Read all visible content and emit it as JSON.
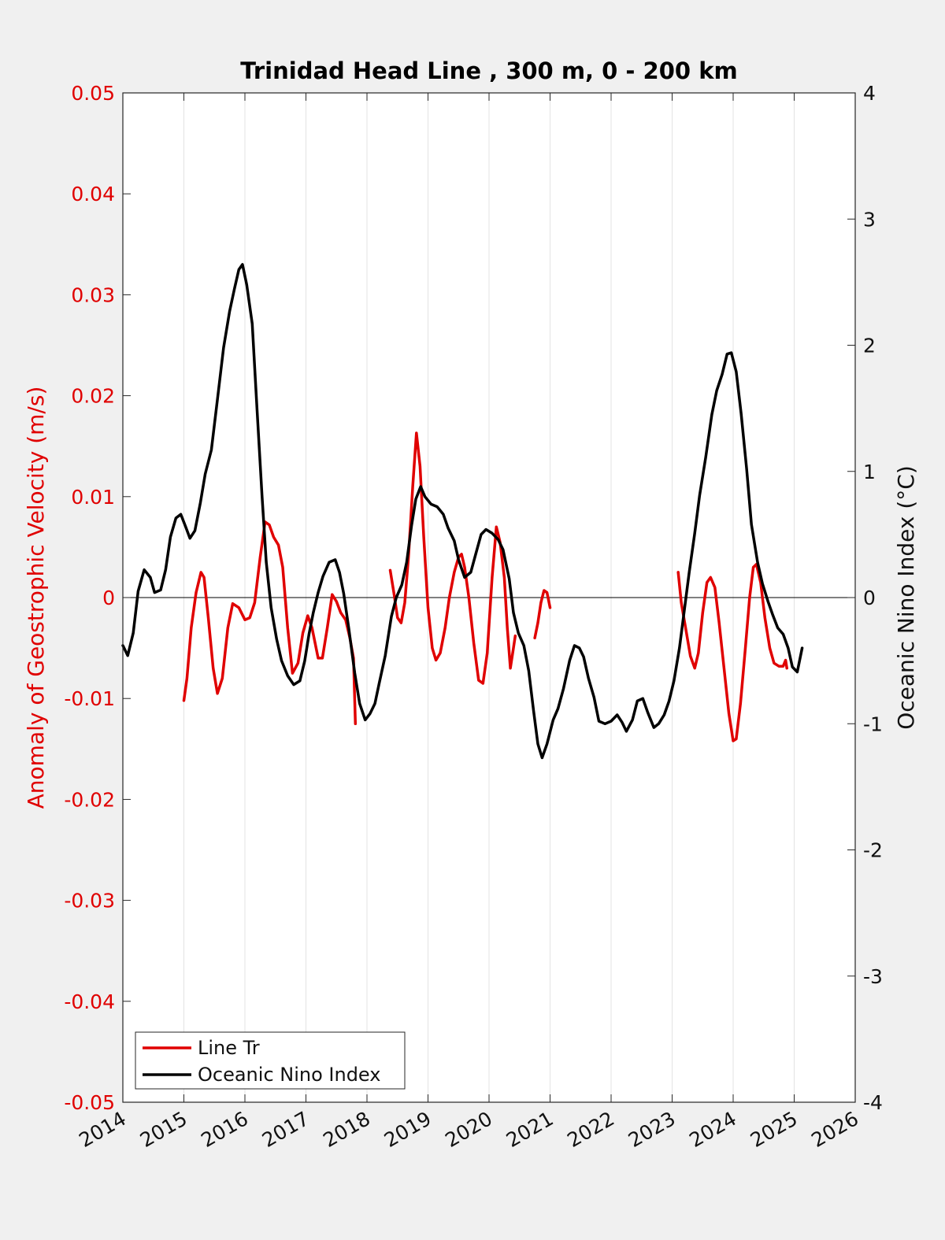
{
  "chart_data": {
    "type": "line",
    "title": "Trinidad Head Line , 300 m, 0 - 200 km",
    "ylabel_left": "Anomaly of Geostrophic Velocity (m/s)",
    "ylabel_right": "Oceanic Nino Index (°C)",
    "xlim": [
      2014,
      2026
    ],
    "ylim_left": [
      -0.05,
      0.05
    ],
    "ylim_right": [
      -4,
      4
    ],
    "x_ticks": [
      "2014",
      "2015",
      "2016",
      "2017",
      "2018",
      "2019",
      "2020",
      "2021",
      "2022",
      "2023",
      "2024",
      "2025",
      "2026"
    ],
    "y_left_ticks": [
      "0.05",
      "0.04",
      "0.03",
      "0.02",
      "0.01",
      "0",
      "-0.01",
      "-0.02",
      "-0.03",
      "-0.04",
      "-0.05"
    ],
    "y_right_ticks": [
      "4",
      "3",
      "2",
      "1",
      "0",
      "-1",
      "-2",
      "-3",
      "-4"
    ],
    "grid": "vertical",
    "zero_line": true,
    "legend_position": "bottom-left",
    "colors": {
      "line_tr": "#e00000",
      "oni": "#000000",
      "left_axis": "#e00000"
    },
    "series": [
      {
        "name": "Line Tr",
        "axis": "left",
        "segments": [
          [
            [
              2015.0,
              -0.0102
            ],
            [
              2015.05,
              -0.008
            ],
            [
              2015.12,
              -0.003
            ],
            [
              2015.2,
              0.0005
            ],
            [
              2015.28,
              0.0025
            ],
            [
              2015.33,
              0.002
            ],
            [
              2015.4,
              -0.002
            ],
            [
              2015.48,
              -0.007
            ],
            [
              2015.55,
              -0.0095
            ],
            [
              2015.63,
              -0.008
            ],
            [
              2015.72,
              -0.003
            ],
            [
              2015.8,
              -0.0006
            ],
            [
              2015.9,
              -0.001
            ],
            [
              2016.0,
              -0.0022
            ],
            [
              2016.08,
              -0.002
            ],
            [
              2016.16,
              -0.0005
            ],
            [
              2016.25,
              0.004
            ],
            [
              2016.33,
              0.0075
            ],
            [
              2016.4,
              0.0072
            ],
            [
              2016.47,
              0.006
            ],
            [
              2016.55,
              0.0052
            ],
            [
              2016.62,
              0.003
            ],
            [
              2016.7,
              -0.003
            ],
            [
              2016.78,
              -0.0075
            ],
            [
              2016.87,
              -0.0065
            ],
            [
              2016.95,
              -0.0035
            ],
            [
              2017.03,
              -0.0018
            ],
            [
              2017.1,
              -0.003
            ],
            [
              2017.2,
              -0.006
            ],
            [
              2017.27,
              -0.006
            ],
            [
              2017.35,
              -0.003
            ],
            [
              2017.43,
              0.0003
            ],
            [
              2017.5,
              -0.0004
            ],
            [
              2017.57,
              -0.0015
            ],
            [
              2017.65,
              -0.0022
            ],
            [
              2017.72,
              -0.004
            ],
            [
              2017.78,
              -0.006
            ],
            [
              2017.81,
              -0.0125
            ]
          ],
          [
            [
              2018.38,
              0.0027
            ],
            [
              2018.44,
              0.0005
            ],
            [
              2018.5,
              -0.002
            ],
            [
              2018.56,
              -0.0025
            ],
            [
              2018.62,
              -0.0005
            ],
            [
              2018.68,
              0.004
            ],
            [
              2018.75,
              0.011
            ],
            [
              2018.81,
              0.0163
            ],
            [
              2018.87,
              0.013
            ],
            [
              2018.93,
              0.006
            ],
            [
              2019.0,
              -0.001
            ],
            [
              2019.07,
              -0.005
            ],
            [
              2019.13,
              -0.0062
            ],
            [
              2019.2,
              -0.0055
            ],
            [
              2019.28,
              -0.003
            ],
            [
              2019.35,
              0.0
            ],
            [
              2019.43,
              0.0025
            ],
            [
              2019.5,
              0.004
            ],
            [
              2019.55,
              0.0043
            ],
            [
              2019.6,
              0.003
            ],
            [
              2019.67,
              0.0
            ],
            [
              2019.75,
              -0.0045
            ],
            [
              2019.83,
              -0.0082
            ],
            [
              2019.9,
              -0.0085
            ],
            [
              2019.97,
              -0.0055
            ],
            [
              2020.05,
              0.002
            ],
            [
              2020.12,
              0.007
            ],
            [
              2020.18,
              0.0055
            ],
            [
              2020.25,
              0.002
            ],
            [
              2020.3,
              -0.003
            ],
            [
              2020.35,
              -0.007
            ],
            [
              2020.4,
              -0.005
            ],
            [
              2020.43,
              -0.0038
            ]
          ],
          [
            [
              2020.75,
              -0.004
            ],
            [
              2020.8,
              -0.0025
            ],
            [
              2020.85,
              -0.0005
            ],
            [
              2020.9,
              0.0007
            ],
            [
              2020.95,
              0.0005
            ],
            [
              2021.0,
              -0.001
            ]
          ],
          [
            [
              2023.1,
              0.0025
            ],
            [
              2023.15,
              -0.0005
            ],
            [
              2023.22,
              -0.003
            ],
            [
              2023.3,
              -0.0058
            ],
            [
              2023.37,
              -0.007
            ],
            [
              2023.43,
              -0.0055
            ],
            [
              2023.5,
              -0.0015
            ],
            [
              2023.57,
              0.0015
            ],
            [
              2023.63,
              0.002
            ],
            [
              2023.7,
              0.001
            ],
            [
              2023.77,
              -0.0025
            ],
            [
              2023.85,
              -0.007
            ],
            [
              2023.93,
              -0.0115
            ],
            [
              2024.0,
              -0.0142
            ],
            [
              2024.05,
              -0.014
            ],
            [
              2024.12,
              -0.0105
            ],
            [
              2024.2,
              -0.005
            ],
            [
              2024.27,
              0.0
            ],
            [
              2024.33,
              0.003
            ],
            [
              2024.38,
              0.0033
            ],
            [
              2024.45,
              0.0015
            ],
            [
              2024.52,
              -0.002
            ],
            [
              2024.6,
              -0.005
            ],
            [
              2024.67,
              -0.0065
            ],
            [
              2024.75,
              -0.0068
            ],
            [
              2024.82,
              -0.0068
            ],
            [
              2024.86,
              -0.0062
            ],
            [
              2024.88,
              -0.007
            ]
          ]
        ]
      },
      {
        "name": "Oceanic Nino Index",
        "axis": "right",
        "points": [
          [
            2014.0,
            -0.38
          ],
          [
            2014.08,
            -0.46
          ],
          [
            2014.17,
            -0.28
          ],
          [
            2014.25,
            0.05
          ],
          [
            2014.35,
            0.22
          ],
          [
            2014.45,
            0.16
          ],
          [
            2014.52,
            0.04
          ],
          [
            2014.62,
            0.06
          ],
          [
            2014.7,
            0.22
          ],
          [
            2014.78,
            0.48
          ],
          [
            2014.87,
            0.63
          ],
          [
            2014.95,
            0.66
          ],
          [
            2015.03,
            0.56
          ],
          [
            2015.1,
            0.47
          ],
          [
            2015.18,
            0.53
          ],
          [
            2015.27,
            0.75
          ],
          [
            2015.35,
            0.98
          ],
          [
            2015.45,
            1.17
          ],
          [
            2015.55,
            1.57
          ],
          [
            2015.65,
            1.98
          ],
          [
            2015.75,
            2.27
          ],
          [
            2015.83,
            2.45
          ],
          [
            2015.9,
            2.6
          ],
          [
            2015.96,
            2.64
          ],
          [
            2016.03,
            2.48
          ],
          [
            2016.12,
            2.17
          ],
          [
            2016.2,
            1.48
          ],
          [
            2016.28,
            0.81
          ],
          [
            2016.35,
            0.28
          ],
          [
            2016.43,
            -0.08
          ],
          [
            2016.52,
            -0.33
          ],
          [
            2016.6,
            -0.5
          ],
          [
            2016.7,
            -0.62
          ],
          [
            2016.8,
            -0.69
          ],
          [
            2016.9,
            -0.66
          ],
          [
            2016.98,
            -0.5
          ],
          [
            2017.05,
            -0.29
          ],
          [
            2017.12,
            -0.12
          ],
          [
            2017.2,
            0.04
          ],
          [
            2017.28,
            0.17
          ],
          [
            2017.38,
            0.28
          ],
          [
            2017.48,
            0.3
          ],
          [
            2017.55,
            0.2
          ],
          [
            2017.62,
            0.03
          ],
          [
            2017.7,
            -0.24
          ],
          [
            2017.8,
            -0.6
          ],
          [
            2017.88,
            -0.84
          ],
          [
            2017.97,
            -0.97
          ],
          [
            2018.05,
            -0.92
          ],
          [
            2018.13,
            -0.84
          ],
          [
            2018.2,
            -0.68
          ],
          [
            2018.3,
            -0.46
          ],
          [
            2018.4,
            -0.15
          ],
          [
            2018.48,
            0.0
          ],
          [
            2018.57,
            0.1
          ],
          [
            2018.65,
            0.28
          ],
          [
            2018.73,
            0.57
          ],
          [
            2018.8,
            0.78
          ],
          [
            2018.88,
            0.88
          ],
          [
            2018.95,
            0.8
          ],
          [
            2019.05,
            0.74
          ],
          [
            2019.15,
            0.72
          ],
          [
            2019.25,
            0.66
          ],
          [
            2019.33,
            0.55
          ],
          [
            2019.43,
            0.45
          ],
          [
            2019.5,
            0.3
          ],
          [
            2019.6,
            0.16
          ],
          [
            2019.7,
            0.2
          ],
          [
            2019.78,
            0.34
          ],
          [
            2019.87,
            0.5
          ],
          [
            2019.95,
            0.54
          ],
          [
            2020.05,
            0.51
          ],
          [
            2020.15,
            0.46
          ],
          [
            2020.23,
            0.38
          ],
          [
            2020.33,
            0.15
          ],
          [
            2020.4,
            -0.12
          ],
          [
            2020.48,
            -0.28
          ],
          [
            2020.57,
            -0.38
          ],
          [
            2020.65,
            -0.58
          ],
          [
            2020.73,
            -0.9
          ],
          [
            2020.8,
            -1.16
          ],
          [
            2020.87,
            -1.27
          ],
          [
            2020.95,
            -1.16
          ],
          [
            2021.05,
            -0.97
          ],
          [
            2021.13,
            -0.88
          ],
          [
            2021.22,
            -0.72
          ],
          [
            2021.32,
            -0.5
          ],
          [
            2021.4,
            -0.38
          ],
          [
            2021.48,
            -0.4
          ],
          [
            2021.55,
            -0.47
          ],
          [
            2021.63,
            -0.64
          ],
          [
            2021.72,
            -0.79
          ],
          [
            2021.8,
            -0.98
          ],
          [
            2021.9,
            -1.0
          ],
          [
            2022.0,
            -0.98
          ],
          [
            2022.1,
            -0.93
          ],
          [
            2022.18,
            -0.99
          ],
          [
            2022.25,
            -1.06
          ],
          [
            2022.35,
            -0.97
          ],
          [
            2022.43,
            -0.82
          ],
          [
            2022.52,
            -0.8
          ],
          [
            2022.6,
            -0.91
          ],
          [
            2022.7,
            -1.03
          ],
          [
            2022.78,
            -1.0
          ],
          [
            2022.87,
            -0.93
          ],
          [
            2022.95,
            -0.82
          ],
          [
            2023.03,
            -0.66
          ],
          [
            2023.12,
            -0.4
          ],
          [
            2023.2,
            -0.1
          ],
          [
            2023.28,
            0.2
          ],
          [
            2023.37,
            0.51
          ],
          [
            2023.45,
            0.81
          ],
          [
            2023.55,
            1.11
          ],
          [
            2023.65,
            1.45
          ],
          [
            2023.73,
            1.64
          ],
          [
            2023.82,
            1.77
          ],
          [
            2023.9,
            1.93
          ],
          [
            2023.97,
            1.94
          ],
          [
            2024.05,
            1.79
          ],
          [
            2024.13,
            1.46
          ],
          [
            2024.22,
            1.02
          ],
          [
            2024.3,
            0.58
          ],
          [
            2024.4,
            0.28
          ],
          [
            2024.48,
            0.11
          ],
          [
            2024.57,
            -0.03
          ],
          [
            2024.65,
            -0.14
          ],
          [
            2024.73,
            -0.24
          ],
          [
            2024.82,
            -0.29
          ],
          [
            2024.9,
            -0.4
          ],
          [
            2024.97,
            -0.55
          ],
          [
            2025.05,
            -0.59
          ],
          [
            2025.13,
            -0.4
          ]
        ]
      }
    ],
    "legend": [
      "Line Tr",
      "Oceanic Nino Index"
    ]
  }
}
